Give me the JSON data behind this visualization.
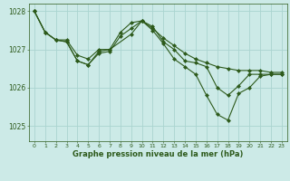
{
  "xlabel": "Graphe pression niveau de la mer (hPa)",
  "background_color": "#cceae7",
  "grid_color": "#aad4d0",
  "line_color": "#2d5a1b",
  "ylim": [
    1024.6,
    1028.2
  ],
  "xlim": [
    -0.5,
    23.5
  ],
  "yticks": [
    1025,
    1026,
    1027,
    1028
  ],
  "xticks": [
    0,
    1,
    2,
    3,
    4,
    5,
    6,
    7,
    8,
    9,
    10,
    11,
    12,
    13,
    14,
    15,
    16,
    17,
    18,
    19,
    20,
    21,
    22,
    23
  ],
  "series1": {
    "x": [
      0,
      1,
      2,
      3,
      4,
      5,
      6,
      7,
      8,
      9,
      10,
      11,
      12,
      13,
      14,
      15,
      16,
      17,
      18,
      19,
      20,
      21,
      22,
      23
    ],
    "y": [
      1028.0,
      1027.45,
      1027.25,
      1027.25,
      1026.85,
      1026.75,
      1027.0,
      1027.0,
      1027.45,
      1027.7,
      1027.75,
      1027.55,
      1027.3,
      1027.1,
      1026.9,
      1026.75,
      1026.65,
      1026.55,
      1026.5,
      1026.45,
      1026.45,
      1026.45,
      1026.4,
      1026.4
    ]
  },
  "series2": {
    "x": [
      0,
      1,
      2,
      3,
      4,
      5,
      6,
      7,
      8,
      9,
      10,
      11,
      12,
      13,
      14,
      15,
      16,
      17,
      18,
      19,
      20,
      21,
      22,
      23
    ],
    "y": [
      1028.0,
      1027.45,
      1027.25,
      1027.2,
      1026.7,
      1026.6,
      1026.9,
      1026.95,
      1027.35,
      1027.55,
      1027.75,
      1027.5,
      1027.15,
      1026.75,
      1026.55,
      1026.35,
      1025.8,
      1025.3,
      1025.15,
      1025.85,
      1026.0,
      1026.3,
      1026.35,
      1026.35
    ]
  },
  "series3": {
    "x": [
      0,
      1,
      2,
      3,
      4,
      5,
      6,
      7,
      9,
      10,
      11,
      12,
      13,
      14,
      15,
      16,
      17,
      18,
      19,
      20,
      21,
      22,
      23
    ],
    "y": [
      1028.0,
      1027.45,
      1027.25,
      1027.2,
      1026.7,
      1026.6,
      1026.95,
      1027.0,
      1027.4,
      1027.75,
      1027.6,
      1027.2,
      1027.0,
      1026.7,
      1026.65,
      1026.55,
      1026.0,
      1025.8,
      1026.05,
      1026.35,
      1026.35,
      1026.35,
      1026.35
    ]
  }
}
